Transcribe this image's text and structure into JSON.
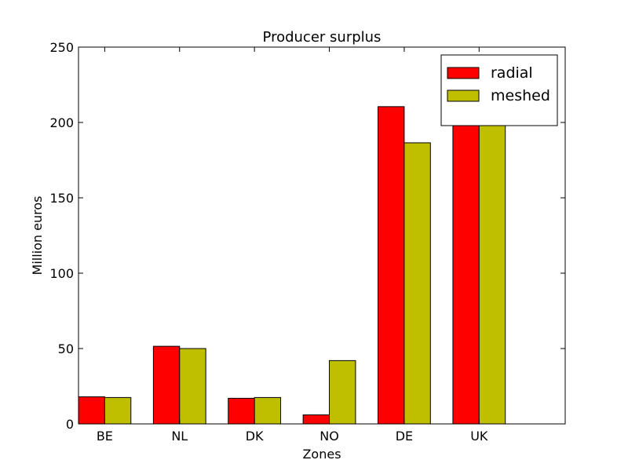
{
  "chart_data": {
    "type": "bar",
    "title": "Producer surplus",
    "xlabel": "Zones",
    "ylabel": "Million euros",
    "categories": [
      "BE",
      "NL",
      "DK",
      "NO",
      "DE",
      "UK"
    ],
    "series": [
      {
        "name": "radial",
        "color": "#ff0000",
        "values": [
          18,
          51.5,
          17,
          6,
          210.5,
          200
        ]
      },
      {
        "name": "meshed",
        "color": "#bfbf00",
        "values": [
          17.5,
          50,
          17.5,
          42,
          186.5,
          202
        ]
      }
    ],
    "ylim": [
      0,
      250
    ],
    "yticks": [
      0,
      50,
      100,
      150,
      200,
      250
    ],
    "grid": false,
    "legend_position": "top-right"
  }
}
